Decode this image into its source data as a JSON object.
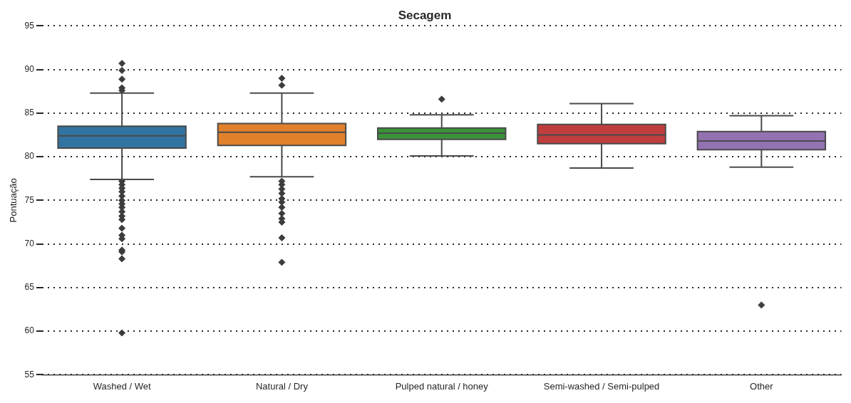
{
  "chart_data": {
    "type": "box",
    "title": "Secagem",
    "ylabel": "Pontuação",
    "categories": [
      "Washed / Wet",
      "Natural / Dry",
      "Pulped natural / honey",
      "Semi-washed / Semi-pulped",
      "Other"
    ],
    "colors": [
      "#3274a1",
      "#e1812c",
      "#3a923a",
      "#c03d3e",
      "#9372b2"
    ],
    "boxes": [
      {
        "low": 77.4,
        "q1": 81.0,
        "median": 82.4,
        "q3": 83.5,
        "high": 87.3,
        "outliers": [
          90.7,
          89.9,
          88.9,
          87.9,
          87.6,
          77.2,
          76.8,
          76.4,
          76.0,
          75.5,
          75.0,
          74.6,
          74.2,
          73.7,
          73.2,
          72.8,
          71.8,
          71.0,
          70.6,
          69.3,
          69.1,
          68.3,
          59.8
        ]
      },
      {
        "low": 77.7,
        "q1": 81.3,
        "median": 82.8,
        "q3": 83.8,
        "high": 87.3,
        "outliers": [
          89.0,
          88.2,
          77.2,
          76.8,
          76.3,
          75.8,
          75.2,
          74.8,
          74.2,
          73.5,
          72.9,
          72.5,
          70.7,
          67.9
        ]
      },
      {
        "low": 80.1,
        "q1": 82.0,
        "median": 82.7,
        "q3": 83.3,
        "high": 84.8,
        "outliers": [
          86.6
        ]
      },
      {
        "low": 78.7,
        "q1": 81.5,
        "median": 82.5,
        "q3": 83.7,
        "high": 86.1
      },
      {
        "low": 78.8,
        "q1": 80.8,
        "median": 81.8,
        "q3": 82.9,
        "high": 84.7,
        "outliers": [
          63.0
        ]
      }
    ],
    "ylim": [
      55,
      95
    ],
    "yticks": [
      55,
      60,
      65,
      70,
      75,
      80,
      85,
      90,
      95
    ],
    "grid": "y",
    "marker": "diamond"
  }
}
